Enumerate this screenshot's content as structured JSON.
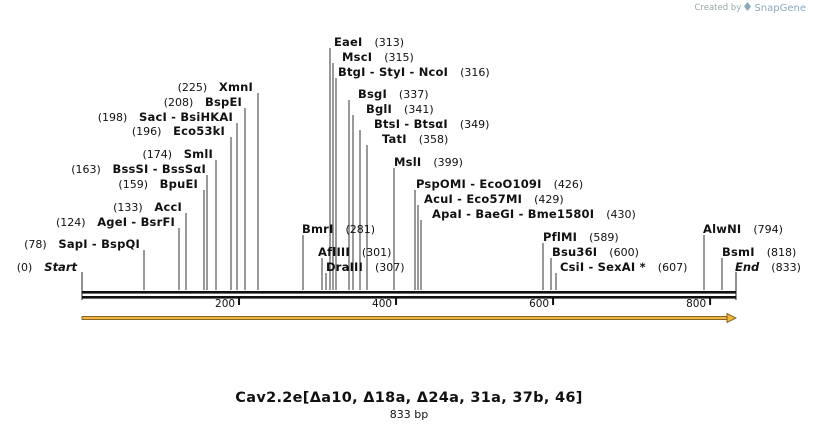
{
  "credit": {
    "created_by": "Created by",
    "brand": "SnapGene"
  },
  "map": {
    "title": "Cav2.2e[Δa10, Δ18a, Δ24a, 31a, 37b, 46]",
    "length_label": "833 bp",
    "length_bp": 833,
    "ticks": [
      {
        "bp": 200,
        "label": "200"
      },
      {
        "bp": 400,
        "label": "400"
      },
      {
        "bp": 600,
        "label": "600"
      },
      {
        "bp": 800,
        "label": "800"
      }
    ],
    "feature": {
      "start": 0,
      "end": 833,
      "color": "#f2b63c",
      "direction": "forward"
    },
    "start_label": {
      "pos": "(0)",
      "name": "Start"
    },
    "end_label": {
      "pos": "(833)",
      "name": "End"
    },
    "sites": [
      {
        "bp": 78,
        "text": "SapI  -  BspQI",
        "pos": "(78)"
      },
      {
        "bp": 124,
        "text": "AgeI  -  BsrFI",
        "pos": "(124)"
      },
      {
        "bp": 133,
        "text": "AccI",
        "pos": "(133)"
      },
      {
        "bp": 159,
        "text": "BpuEI",
        "pos": "(159)"
      },
      {
        "bp": 163,
        "text": "BssSI  -  BssSαI",
        "pos": "(163)"
      },
      {
        "bp": 174,
        "text": "SmlI",
        "pos": "(174)"
      },
      {
        "bp": 196,
        "text": "Eco53kI",
        "pos": "(196)"
      },
      {
        "bp": 198,
        "text": "SacI  -  BsiHKAI",
        "pos": "(198)"
      },
      {
        "bp": 208,
        "text": "BspEI",
        "pos": "(208)"
      },
      {
        "bp": 225,
        "text": "XmnI",
        "pos": "(225)"
      },
      {
        "bp": 281,
        "text": "BmrI",
        "pos": "(281)"
      },
      {
        "bp": 301,
        "text": "AflIII",
        "pos": "(301)"
      },
      {
        "bp": 307,
        "text": "DraIII",
        "pos": "(307)"
      },
      {
        "bp": 313,
        "text": "EaeI",
        "pos": "(313)"
      },
      {
        "bp": 315,
        "text": "MscI",
        "pos": "(315)"
      },
      {
        "bp": 316,
        "text": "BtgI  -  StyI  -  NcoI",
        "pos": "(316)"
      },
      {
        "bp": 337,
        "text": "BsgI",
        "pos": "(337)"
      },
      {
        "bp": 341,
        "text": "BglI",
        "pos": "(341)"
      },
      {
        "bp": 349,
        "text": "BtsI  -  BtsαI",
        "pos": "(349)"
      },
      {
        "bp": 358,
        "text": "TatI",
        "pos": "(358)"
      },
      {
        "bp": 399,
        "text": "MslI",
        "pos": "(399)"
      },
      {
        "bp": 426,
        "text": "PspOMI  -  EcoO109I",
        "pos": "(426)"
      },
      {
        "bp": 429,
        "text": "AcuI  -  Eco57MI",
        "pos": "(429)"
      },
      {
        "bp": 430,
        "text": "ApaI  -  BaeGI  -  Bme1580I",
        "pos": "(430)"
      },
      {
        "bp": 589,
        "text": "PflMI",
        "pos": "(589)"
      },
      {
        "bp": 600,
        "text": "Bsu36I",
        "pos": "(600)"
      },
      {
        "bp": 607,
        "text": "CsiI  -  SexAI *",
        "pos": "(607)"
      },
      {
        "bp": 794,
        "text": "AlwNI",
        "pos": "(794)"
      },
      {
        "bp": 818,
        "text": "BsmI",
        "pos": "(818)"
      }
    ]
  }
}
